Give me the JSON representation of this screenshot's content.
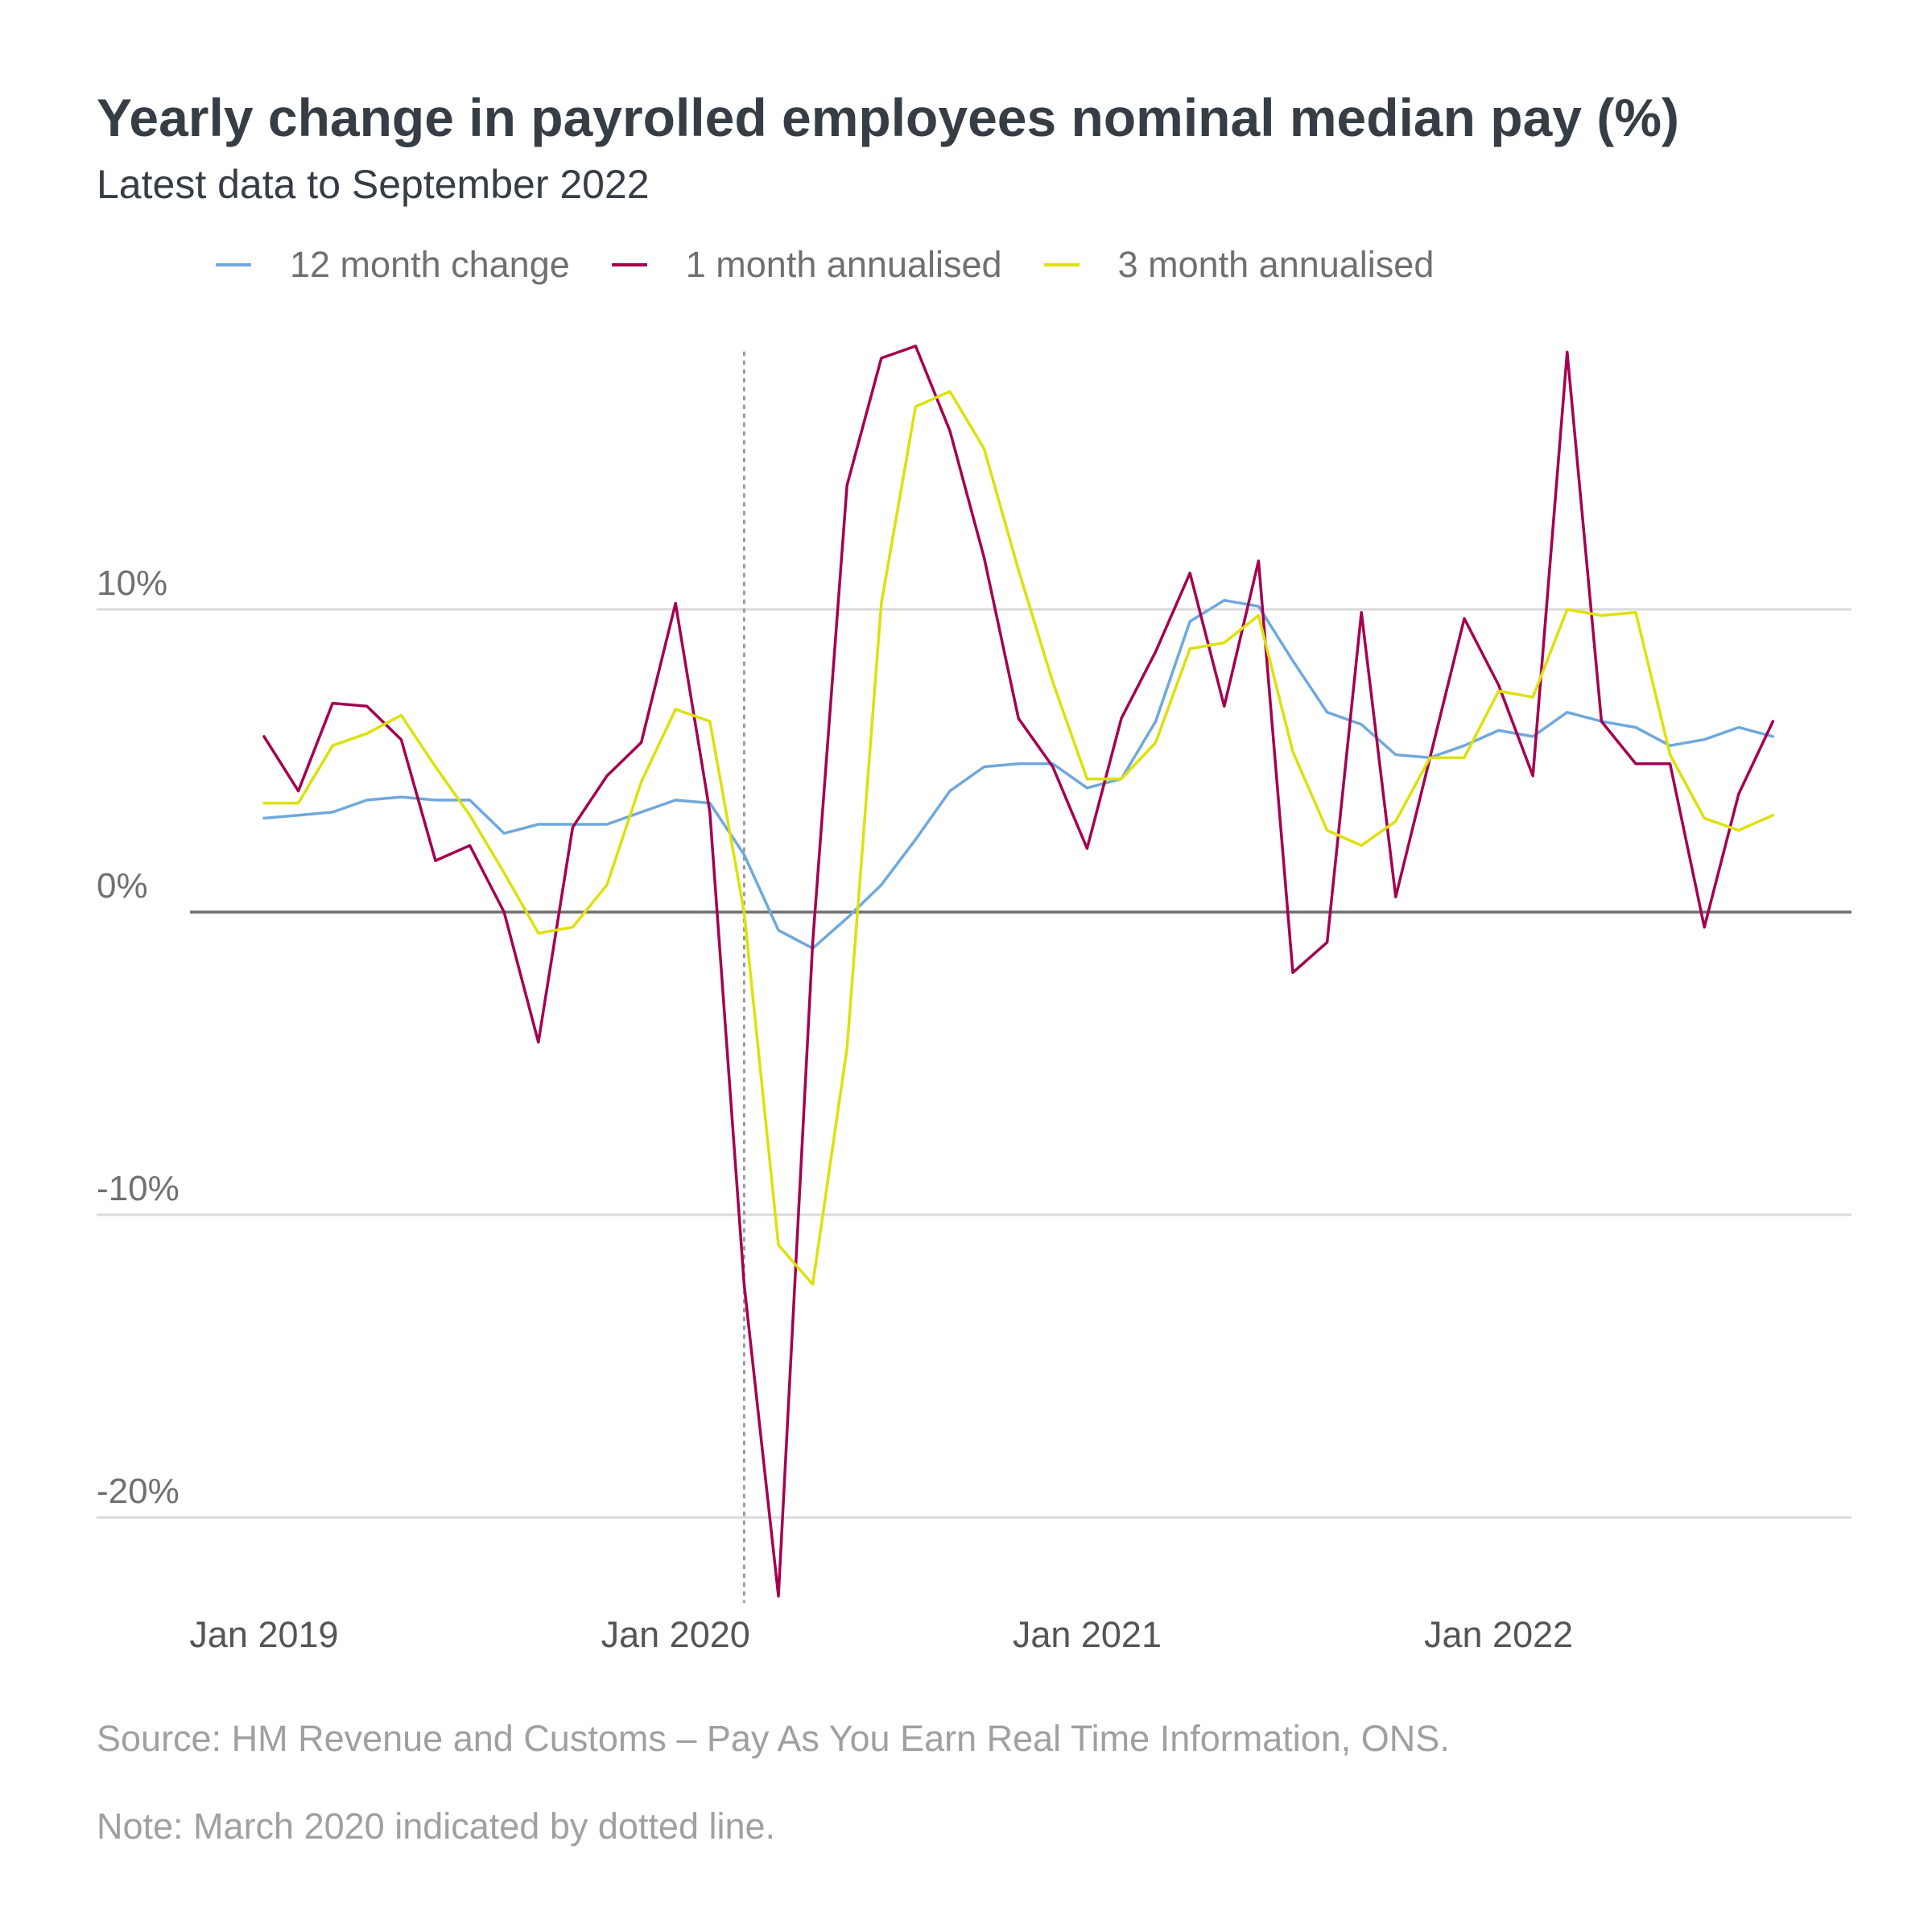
{
  "chart_data": {
    "type": "line",
    "title": "Yearly change in payrolled employees nominal median pay (%)",
    "subtitle": "Latest data to September 2022",
    "xlabel": "",
    "ylabel": "",
    "x": [
      "2019-01",
      "2019-02",
      "2019-03",
      "2019-04",
      "2019-05",
      "2019-06",
      "2019-07",
      "2019-08",
      "2019-09",
      "2019-10",
      "2019-11",
      "2019-12",
      "2020-01",
      "2020-02",
      "2020-03",
      "2020-04",
      "2020-05",
      "2020-06",
      "2020-07",
      "2020-08",
      "2020-09",
      "2020-10",
      "2020-11",
      "2020-12",
      "2021-01",
      "2021-02",
      "2021-03",
      "2021-04",
      "2021-05",
      "2021-06",
      "2021-07",
      "2021-08",
      "2021-09",
      "2021-10",
      "2021-11",
      "2021-12",
      "2022-01",
      "2022-02",
      "2022-03",
      "2022-04",
      "2022-05",
      "2022-06",
      "2022-07",
      "2022-08",
      "2022-09"
    ],
    "x_ticks": [
      {
        "value": "2019-01",
        "label": "Jan 2019"
      },
      {
        "value": "2020-01",
        "label": "Jan 2020"
      },
      {
        "value": "2021-01",
        "label": "Jan 2021"
      },
      {
        "value": "2022-01",
        "label": "Jan 2022"
      }
    ],
    "y_ticks": [
      {
        "value": 10,
        "label": "10%"
      },
      {
        "value": 0,
        "label": "0%"
      },
      {
        "value": -10,
        "label": "-10%"
      },
      {
        "value": -20,
        "label": "-20%"
      }
    ],
    "ylim": [
      -22.6,
      18.6
    ],
    "grid": true,
    "zero_line": true,
    "marker_line": {
      "x": "2020-03",
      "style": "dotted"
    },
    "legend_position": "top",
    "series": [
      {
        "name": "12 month change",
        "color": "#6fa8dc",
        "values": [
          3.1,
          3.2,
          3.3,
          3.7,
          3.8,
          3.7,
          3.7,
          2.6,
          2.9,
          2.9,
          2.9,
          3.3,
          3.7,
          3.6,
          1.9,
          -0.6,
          -1.2,
          -0.2,
          0.9,
          2.4,
          4.0,
          4.8,
          4.9,
          4.9,
          4.1,
          4.4,
          6.3,
          9.6,
          10.3,
          10.1,
          8.3,
          6.6,
          6.2,
          5.2,
          5.1,
          5.5,
          6.0,
          5.8,
          6.6,
          6.3,
          6.1,
          5.5,
          5.7,
          6.1,
          5.8
        ]
      },
      {
        "name": "1 month annualised",
        "color": "#a4004f",
        "values": [
          5.8,
          4.0,
          6.9,
          6.8,
          5.7,
          1.7,
          2.2,
          0.0,
          -4.3,
          2.8,
          4.5,
          5.6,
          10.2,
          3.3,
          -12.3,
          -22.6,
          -1.0,
          14.1,
          18.3,
          18.7,
          15.9,
          11.7,
          6.4,
          4.8,
          2.1,
          6.4,
          8.6,
          11.2,
          6.8,
          11.6,
          -2.0,
          -1.0,
          9.9,
          0.5,
          5.1,
          9.7,
          7.5,
          4.5,
          18.5,
          6.3,
          4.9,
          4.9,
          -0.5,
          3.9,
          6.3
        ]
      },
      {
        "name": "3 month annualised",
        "color": "#dde10a",
        "values": [
          3.6,
          3.6,
          5.5,
          5.9,
          6.5,
          4.8,
          3.2,
          1.3,
          -0.7,
          -0.5,
          0.9,
          4.3,
          6.7,
          6.3,
          0.0,
          -11.0,
          -12.3,
          -4.5,
          10.2,
          16.7,
          17.2,
          15.3,
          11.3,
          7.6,
          4.4,
          4.4,
          5.6,
          8.7,
          8.9,
          9.8,
          5.3,
          2.7,
          2.2,
          3.0,
          5.1,
          5.1,
          7.3,
          7.1,
          10.0,
          9.8,
          9.9,
          5.2,
          3.1,
          2.7,
          3.2
        ]
      }
    ]
  },
  "footnotes": {
    "source": "Source: HM Revenue and Customs – Pay As You Earn Real Time Information, ONS.",
    "note": "Note: March 2020 indicated by dotted line."
  }
}
